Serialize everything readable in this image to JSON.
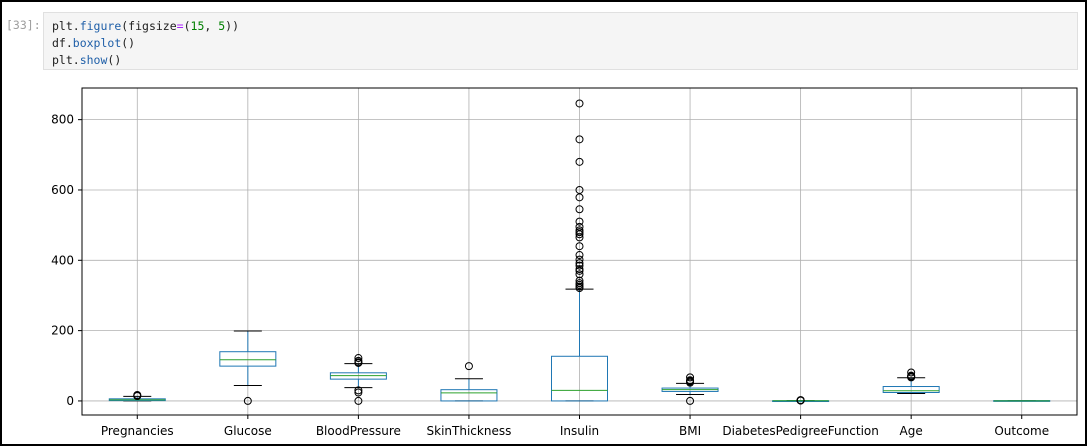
{
  "notebook": {
    "prompt": "[33]:",
    "code_lines": [
      [
        {
          "t": "plt.",
          "c": ""
        },
        {
          "t": "figure",
          "c": "attr"
        },
        {
          "t": "(figsize",
          "c": ""
        },
        {
          "t": "=",
          "c": "op"
        },
        {
          "t": "(",
          "c": ""
        },
        {
          "t": "15",
          "c": "num"
        },
        {
          "t": ", ",
          "c": ""
        },
        {
          "t": "5",
          "c": "num"
        },
        {
          "t": "))",
          "c": ""
        }
      ],
      [
        {
          "t": "df.",
          "c": ""
        },
        {
          "t": "boxplot",
          "c": "attr"
        },
        {
          "t": "()",
          "c": ""
        }
      ],
      [
        {
          "t": "plt.",
          "c": ""
        },
        {
          "t": "show",
          "c": "attr"
        },
        {
          "t": "()",
          "c": ""
        }
      ]
    ]
  },
  "chart_data": {
    "type": "boxplot",
    "categories": [
      "Pregnancies",
      "Glucose",
      "BloodPressure",
      "SkinThickness",
      "Insulin",
      "BMI",
      "DiabetesPedigreeFunction",
      "Age",
      "Outcome"
    ],
    "ylim": [
      -40,
      890
    ],
    "yticks": [
      0,
      200,
      400,
      600,
      800
    ],
    "grid": true,
    "colors": {
      "box": "#1f77b4",
      "median": "#2ca02c",
      "grid": "#b0b0b0"
    },
    "boxes": [
      {
        "q1": 1,
        "median": 3,
        "q3": 6,
        "whislo": 0,
        "whishi": 13,
        "fliers": [
          14,
          15,
          17
        ]
      },
      {
        "q1": 99,
        "median": 117,
        "q3": 140,
        "whislo": 44,
        "whishi": 199,
        "fliers": [
          0
        ]
      },
      {
        "q1": 62,
        "median": 72,
        "q3": 80,
        "whislo": 38,
        "whishi": 106,
        "fliers": [
          0,
          24,
          30,
          108,
          110,
          114,
          122
        ]
      },
      {
        "q1": 0,
        "median": 23,
        "q3": 32,
        "whislo": 0,
        "whishi": 63,
        "fliers": [
          99
        ]
      },
      {
        "q1": 0,
        "median": 30,
        "q3": 127,
        "whislo": 0,
        "whishi": 318,
        "fliers": [
          321,
          325,
          330,
          335,
          342,
          360,
          370,
          375,
          385,
          392,
          402,
          415,
          440,
          465,
          474,
          480,
          485,
          495,
          510,
          545,
          579,
          600,
          680,
          744,
          846
        ]
      },
      {
        "q1": 27,
        "median": 32,
        "q3": 36.6,
        "whislo": 18.2,
        "whishi": 50,
        "fliers": [
          0,
          52,
          55,
          57,
          59,
          67
        ]
      },
      {
        "q1": 0.24,
        "median": 0.37,
        "q3": 0.63,
        "whislo": 0.08,
        "whishi": 1.19,
        "fliers": [
          1.2,
          1.4,
          1.7,
          2.1,
          2.42
        ]
      },
      {
        "q1": 24,
        "median": 29,
        "q3": 41,
        "whislo": 21,
        "whishi": 66,
        "fliers": [
          67,
          69,
          70,
          72,
          81
        ]
      },
      {
        "q1": 0,
        "median": 0,
        "q3": 1,
        "whislo": 0,
        "whishi": 1,
        "fliers": []
      }
    ]
  }
}
